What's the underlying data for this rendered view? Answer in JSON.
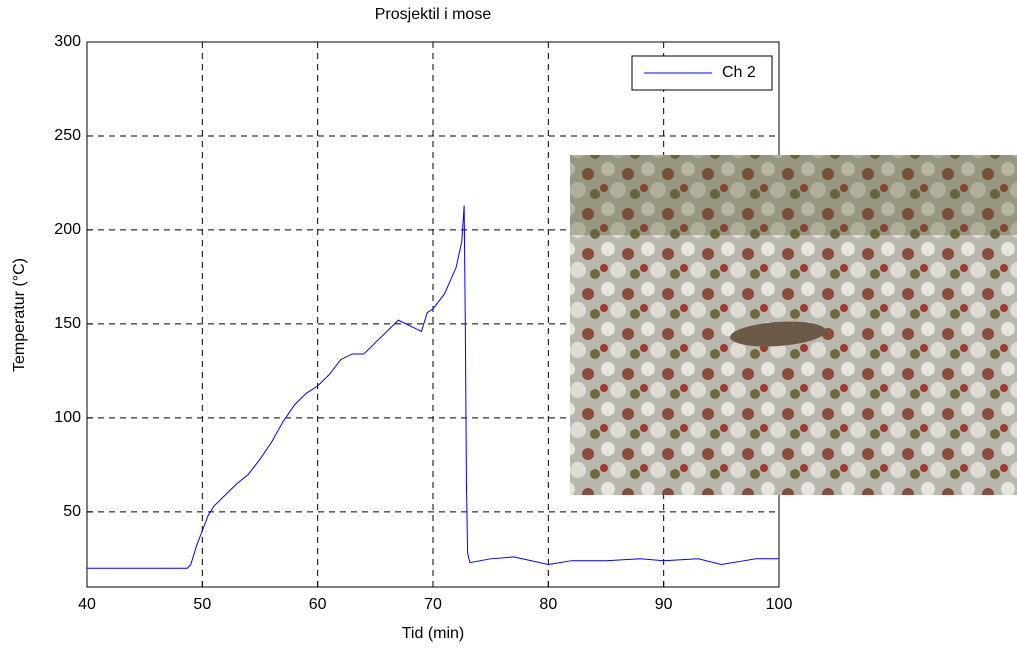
{
  "chart_data": {
    "type": "line",
    "title": "Prosjektil i mose",
    "x_label": "Tid (min)",
    "y_label": "Temperatur (°C)",
    "x": [
      40,
      48.7,
      49,
      49.5,
      50,
      50.5,
      51,
      52,
      53,
      54,
      55,
      56,
      57,
      58,
      59,
      60,
      61,
      62,
      63,
      64,
      65,
      66,
      67,
      68,
      69,
      69.5,
      70,
      71,
      72,
      72.5,
      72.7,
      72.8,
      72.9,
      73,
      73.2,
      75,
      77,
      80,
      82,
      85,
      88,
      90,
      93,
      95,
      97,
      98,
      100
    ],
    "series": [
      {
        "name": "Ch 2",
        "color": "#0000ff",
        "values": [
          20,
          20,
          22,
          32,
          40,
          48,
          53,
          59,
          65,
          70,
          78,
          87,
          98,
          107,
          113,
          117,
          123,
          131,
          134,
          134,
          140,
          146,
          152,
          149,
          146,
          156,
          158,
          166,
          180,
          194,
          213,
          150,
          65,
          28,
          23,
          25,
          26,
          22,
          24,
          24,
          25,
          24,
          25,
          22,
          24,
          25,
          25
        ]
      }
    ],
    "xlim": [
      40,
      100
    ],
    "xticks": [
      40,
      50,
      60,
      70,
      80,
      90,
      100
    ],
    "ylim": [
      10,
      300
    ],
    "yticks": [
      50,
      100,
      150,
      200,
      250,
      300
    ],
    "grid": true,
    "legend_position": "northeast"
  }
}
